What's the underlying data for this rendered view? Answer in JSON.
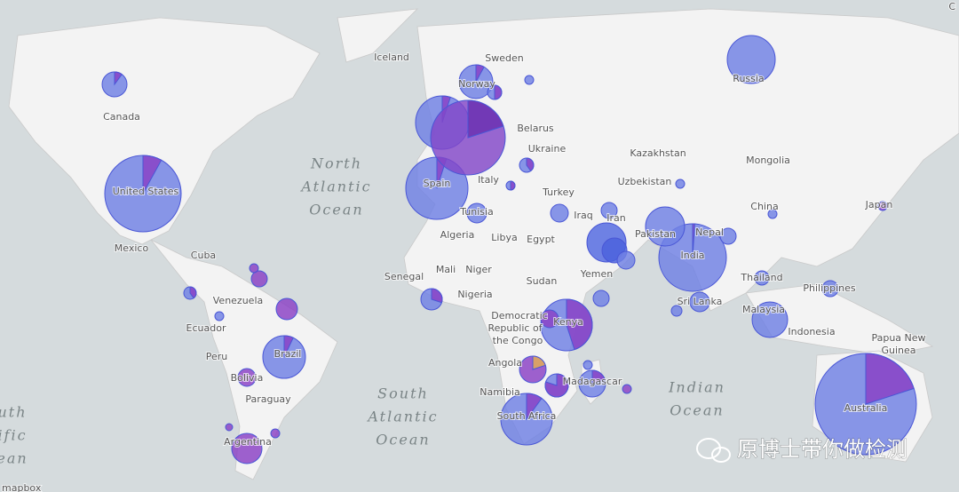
{
  "map": {
    "places": [
      "Iceland",
      "Sweden",
      "Norway",
      "Canada",
      "Belarus",
      "Ukraine",
      "Kazakhstan",
      "Mongolia",
      "Russia",
      "Uzbekistan",
      "Turkey",
      "Italy",
      "Spain",
      "Tunisia",
      "Algeria",
      "Libya",
      "Egypt",
      "Iraq",
      "Iran",
      "Pakistan",
      "Nepal",
      "India",
      "China",
      "Japan",
      "United States",
      "Mexico",
      "Cuba",
      "Venezuela",
      "Ecuador",
      "Peru",
      "Bolivia",
      "Brazil",
      "Paraguay",
      "Argentina",
      "Mali",
      "Niger",
      "Senegal",
      "Nigeria",
      "Sudan",
      "Yemen",
      "Democratic",
      "Republic of",
      "the Congo",
      "Kenya",
      "Angola",
      "Namibia",
      "Madagascar",
      "South Africa",
      "Thailand",
      "Philippines",
      "Sri Lanka",
      "Malaysia",
      "Indonesia",
      "Papua New",
      "Guinea",
      "Australia"
    ],
    "oceans": [
      [
        "North",
        "Atlantic",
        "Ocean"
      ],
      [
        "South",
        "Atlantic",
        "Ocean"
      ],
      [
        "Indian",
        "Ocean"
      ],
      [
        "uth",
        "ific",
        "ean"
      ]
    ],
    "watermark": "原博士带你做检测",
    "attribution": "mapbox",
    "corner_button": "C"
  }
}
